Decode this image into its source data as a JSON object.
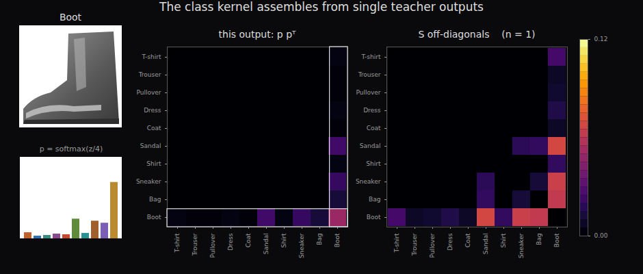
{
  "title": "The class kernel assembles from single teacher outputs",
  "image_label": "Boot",
  "colorbar": {
    "lim": [
      0,
      0.12
    ],
    "ticks": [
      {
        "value": 0,
        "label": "0.00"
      },
      {
        "value": 0.12,
        "label": "0.12"
      }
    ]
  },
  "chart_data": [
    {
      "type": "bar",
      "title": "p = softmax(z/4)",
      "categories": [
        "T-shirt",
        "Trouser",
        "Pullover",
        "Dress",
        "Coat",
        "Sandal",
        "Shirt",
        "Sneaker",
        "Bag",
        "Boot"
      ],
      "values": [
        0.045,
        0.02,
        0.025,
        0.035,
        0.03,
        0.145,
        0.04,
        0.13,
        0.115,
        0.415
      ],
      "colors": [
        "#c0622d",
        "#2f6fb0",
        "#3a8a84",
        "#8a4a8a",
        "#c4492f",
        "#5e8c3a",
        "#2a9090",
        "#a0602e",
        "#7b5fb5",
        "#b98a30"
      ],
      "ylim": [
        0,
        0.6
      ],
      "tick_labels": false
    },
    {
      "type": "heatmap",
      "title": "this output: p pᵀ",
      "x": [
        "T-shirt",
        "Trouser",
        "Pullover",
        "Dress",
        "Coat",
        "Sandal",
        "Shirt",
        "Sneaker",
        "Bag",
        "Boot"
      ],
      "y": [
        "T-shirt",
        "Trouser",
        "Pullover",
        "Dress",
        "Coat",
        "Sandal",
        "Shirt",
        "Sneaker",
        "Bag",
        "Boot"
      ],
      "cells": [
        [
          0,
          0,
          0,
          0,
          0,
          0,
          0,
          0,
          0,
          0.004
        ],
        [
          0,
          0,
          0,
          0,
          0,
          0,
          0,
          0,
          0,
          0.002
        ],
        [
          0,
          0,
          0,
          0,
          0,
          0,
          0,
          0,
          0,
          0.002
        ],
        [
          0,
          0,
          0,
          0,
          0,
          0,
          0,
          0,
          0,
          0.004
        ],
        [
          0,
          0,
          0,
          0,
          0,
          0,
          0,
          0,
          0,
          0.002
        ],
        [
          0,
          0,
          0,
          0,
          0,
          0,
          0,
          0,
          0,
          0.024
        ],
        [
          0,
          0,
          0,
          0,
          0,
          0,
          0,
          0,
          0,
          0.004
        ],
        [
          0,
          0,
          0,
          0,
          0,
          0,
          0,
          0,
          0,
          0.021
        ],
        [
          0,
          0,
          0,
          0,
          0,
          0,
          0,
          0,
          0,
          0.012
        ],
        [
          0.004,
          0.002,
          0.002,
          0.004,
          0.002,
          0.024,
          0.004,
          0.021,
          0.012,
          0.05
        ]
      ]
    },
    {
      "type": "heatmap",
      "title": "S off-diagonals    (n = 1)",
      "x": [
        "T-shirt",
        "Trouser",
        "Pullover",
        "Dress",
        "Coat",
        "Sandal",
        "Shirt",
        "Sneaker",
        "Bag",
        "Boot"
      ],
      "y": [
        "T-shirt",
        "Trouser",
        "Pullover",
        "Dress",
        "Coat",
        "Sandal",
        "Shirt",
        "Sneaker",
        "Bag",
        "Boot"
      ],
      "cells": [
        [
          0,
          0,
          0,
          0,
          0,
          0,
          0,
          0,
          0,
          0.025
        ],
        [
          0,
          0,
          0,
          0,
          0,
          0,
          0,
          0,
          0,
          0.008
        ],
        [
          0,
          0,
          0,
          0,
          0,
          0,
          0,
          0,
          0,
          0.01
        ],
        [
          0,
          0,
          0,
          0,
          0,
          0,
          0,
          0,
          0,
          0.015
        ],
        [
          0,
          0,
          0,
          0,
          0,
          0,
          0,
          0,
          0,
          0.008
        ],
        [
          0,
          0,
          0,
          0,
          0,
          0,
          0,
          0.018,
          0.02,
          0.068
        ],
        [
          0,
          0,
          0,
          0,
          0,
          0,
          0,
          0,
          0,
          0.02
        ],
        [
          0,
          0,
          0,
          0,
          0,
          0.018,
          0,
          0,
          0.012,
          0.065
        ],
        [
          0,
          0,
          0,
          0,
          0,
          0.02,
          0,
          0.012,
          0,
          0.062
        ],
        [
          0.025,
          0.008,
          0.01,
          0.015,
          0.008,
          0.068,
          0.02,
          0.065,
          0.062,
          0
        ]
      ]
    }
  ]
}
